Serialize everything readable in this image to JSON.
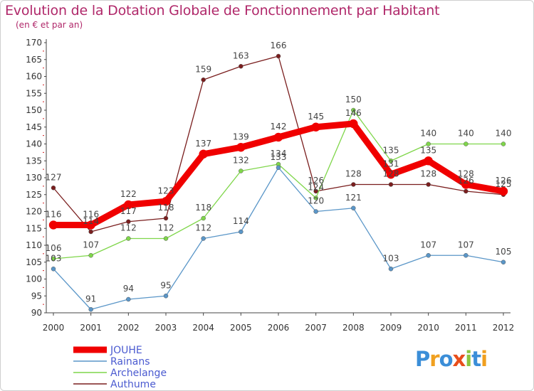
{
  "title": "Evolution de la Dotation Globale de Fonctionnement par Habitant",
  "subtitle": "(en € et par an)",
  "logo": {
    "text": "Proxiti",
    "colors": [
      "#3b8ed8",
      "#f0a020",
      "#3b8ed8",
      "#e84e1b",
      "#8cc63f",
      "#3b8ed8",
      "#f0a020"
    ]
  },
  "chart_data": {
    "type": "line",
    "x": [
      "2000",
      "2001",
      "2002",
      "2003",
      "2004",
      "2005",
      "2006",
      "2007",
      "2008",
      "2009",
      "2010",
      "2011",
      "2012"
    ],
    "ylim": [
      90,
      170
    ],
    "yticks": [
      90,
      95,
      100,
      105,
      110,
      115,
      120,
      125,
      130,
      135,
      140,
      145,
      150,
      155,
      160,
      165,
      170
    ],
    "grid": false,
    "legend_position": "bottom-left",
    "series": [
      {
        "name": "Authume",
        "color": "#7a1e1e",
        "width": 1.3,
        "values": [
          127,
          114,
          117,
          118,
          159,
          163,
          166,
          126,
          128,
          128,
          128,
          126,
          125
        ],
        "labels": [
          "127",
          "114",
          "117",
          "118",
          "159",
          "163",
          "166",
          "126",
          "128",
          "128",
          "128",
          "126",
          "125"
        ]
      },
      {
        "name": "Archelange",
        "color": "#7fd64a",
        "width": 1.3,
        "values": [
          106,
          107,
          112,
          112,
          118,
          132,
          134,
          124,
          150,
          135,
          140,
          140,
          140
        ],
        "labels": [
          "106",
          "107",
          "112",
          "112",
          "118",
          "132",
          "134",
          "124",
          "150",
          "135",
          "140",
          "140",
          "140"
        ]
      },
      {
        "name": "Rainans",
        "color": "#5a96c8",
        "width": 1.3,
        "values": [
          103,
          91,
          94,
          95,
          112,
          114,
          133,
          120,
          121,
          103,
          107,
          107,
          105
        ],
        "labels": [
          "103",
          "91",
          "94",
          "95",
          "112",
          "114",
          "133",
          "120",
          "121",
          "103",
          "107",
          "107",
          "105"
        ]
      },
      {
        "name": "JOUHE",
        "color": "#f00000",
        "width": 9,
        "values": [
          116,
          116,
          122,
          123,
          137,
          139,
          142,
          145,
          146,
          131,
          135,
          128,
          126
        ],
        "labels": [
          "116",
          "116",
          "122",
          "123",
          "137",
          "139",
          "142",
          "145",
          "146",
          "131",
          "135",
          "128",
          "126"
        ]
      }
    ],
    "legend": [
      "JOUHE",
      "Rainans",
      "Archelange",
      "Authume"
    ]
  }
}
